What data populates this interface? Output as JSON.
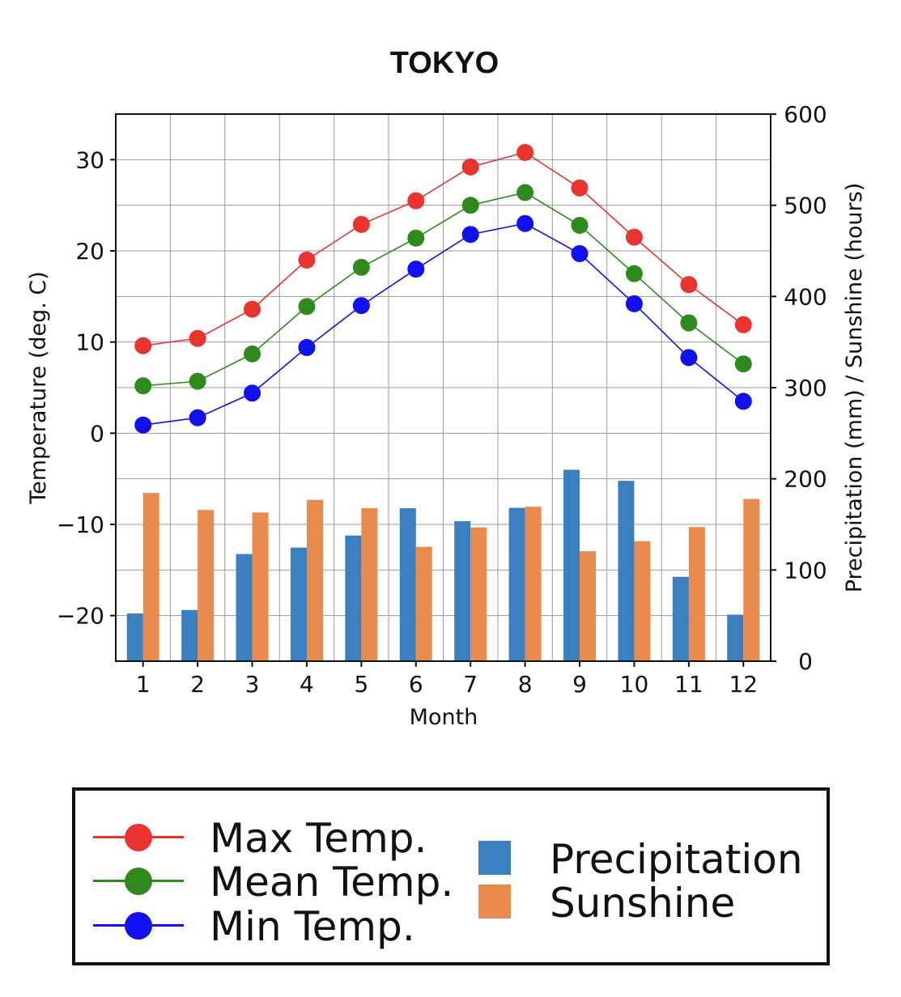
{
  "chart_data": {
    "type": "line+bar",
    "title": "TOKYO",
    "xlabel": "Month",
    "ylabel_left": "Temperature (deg. C)",
    "ylabel_right": "Precipitation (mm)  /  Sunshine (hours)",
    "ylim_left": [
      -25,
      35
    ],
    "ylim_right": [
      0,
      600
    ],
    "left_ticks": [
      30,
      20,
      10,
      0,
      -10,
      -20
    ],
    "left_tick_labels": [
      "30",
      "20",
      "10",
      "0",
      "−10",
      "−20"
    ],
    "right_ticks": [
      600,
      500,
      400,
      300,
      200,
      100,
      0
    ],
    "right_tick_labels": [
      "600",
      "500",
      "400",
      "300",
      "200",
      "100",
      "0"
    ],
    "categories": [
      "1",
      "2",
      "3",
      "4",
      "5",
      "6",
      "7",
      "8",
      "9",
      "10",
      "11",
      "12"
    ],
    "grid": true,
    "line_series": [
      {
        "name": "Max Temp.",
        "color": "#e8332e",
        "axis": "left",
        "values": [
          9.6,
          10.4,
          13.6,
          19.0,
          22.9,
          25.5,
          29.2,
          30.8,
          26.9,
          21.5,
          16.3,
          11.9
        ]
      },
      {
        "name": "Mean Temp.",
        "color": "#2e8a1f",
        "axis": "left",
        "values": [
          5.2,
          5.7,
          8.7,
          13.9,
          18.2,
          21.4,
          25.0,
          26.4,
          22.8,
          17.5,
          12.1,
          7.6
        ]
      },
      {
        "name": "Min Temp.",
        "color": "#1010f0",
        "axis": "left",
        "values": [
          0.9,
          1.7,
          4.4,
          9.4,
          14.0,
          18.0,
          21.8,
          23.0,
          19.7,
          14.2,
          8.3,
          3.5
        ]
      }
    ],
    "bar_series": [
      {
        "name": "Precipitation",
        "color": "#3a7fbf",
        "axis": "right",
        "values": [
          52.3,
          56.1,
          117.5,
          124.5,
          137.8,
          167.7,
          153.5,
          168.2,
          209.9,
          197.8,
          92.5,
          51.0
        ]
      },
      {
        "name": "Sunshine",
        "color": "#eb8a4d",
        "axis": "right",
        "values": [
          184.5,
          165.8,
          163.1,
          176.9,
          167.8,
          125.4,
          146.7,
          169.4,
          120.6,
          131.6,
          147.1,
          177.9
        ]
      }
    ]
  },
  "legend": {
    "lines": [
      "Max Temp.",
      "Mean Temp.",
      "Min Temp."
    ],
    "bars": [
      "Precipitation",
      "Sunshine"
    ]
  }
}
